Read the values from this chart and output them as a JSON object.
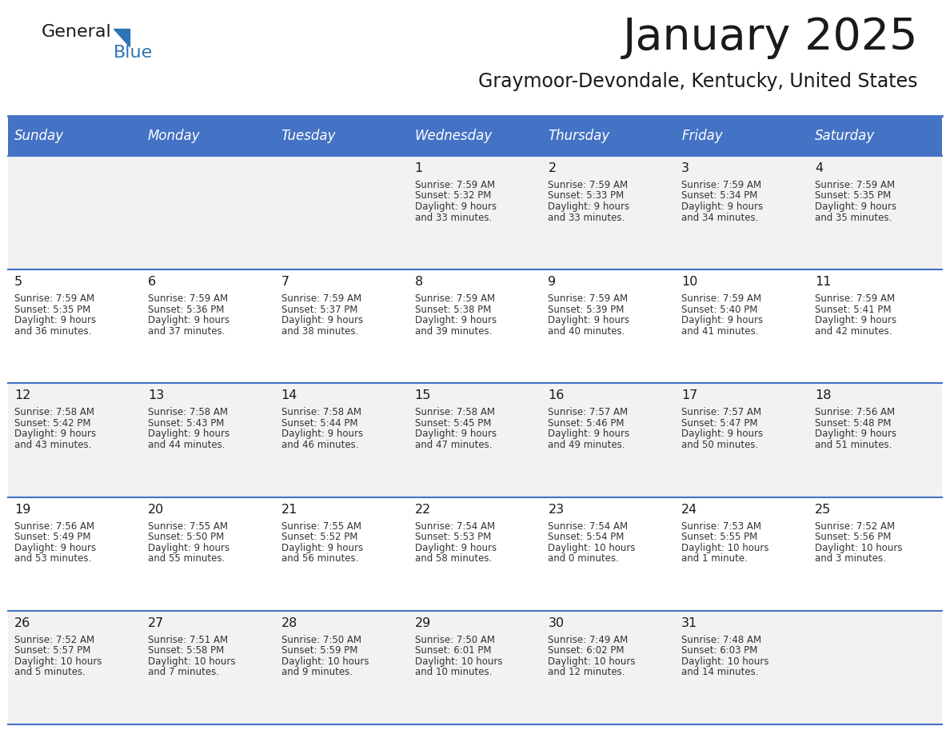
{
  "title": "January 2025",
  "subtitle": "Graymoor-Devondale, Kentucky, United States",
  "days_of_week": [
    "Sunday",
    "Monday",
    "Tuesday",
    "Wednesday",
    "Thursday",
    "Friday",
    "Saturday"
  ],
  "header_bg": "#4472C4",
  "header_text_color": "#FFFFFF",
  "cell_bg_even": "#F2F2F2",
  "cell_bg_odd": "#FFFFFF",
  "text_color": "#333333",
  "line_color": "#4472C4",
  "calendar_data": [
    [
      {
        "day": null,
        "sunrise": null,
        "sunset": null,
        "daylight": null
      },
      {
        "day": null,
        "sunrise": null,
        "sunset": null,
        "daylight": null
      },
      {
        "day": null,
        "sunrise": null,
        "sunset": null,
        "daylight": null
      },
      {
        "day": "1",
        "sunrise": "7:59 AM",
        "sunset": "5:32 PM",
        "daylight": "9 hours\nand 33 minutes."
      },
      {
        "day": "2",
        "sunrise": "7:59 AM",
        "sunset": "5:33 PM",
        "daylight": "9 hours\nand 33 minutes."
      },
      {
        "day": "3",
        "sunrise": "7:59 AM",
        "sunset": "5:34 PM",
        "daylight": "9 hours\nand 34 minutes."
      },
      {
        "day": "4",
        "sunrise": "7:59 AM",
        "sunset": "5:35 PM",
        "daylight": "9 hours\nand 35 minutes."
      }
    ],
    [
      {
        "day": "5",
        "sunrise": "7:59 AM",
        "sunset": "5:35 PM",
        "daylight": "9 hours\nand 36 minutes."
      },
      {
        "day": "6",
        "sunrise": "7:59 AM",
        "sunset": "5:36 PM",
        "daylight": "9 hours\nand 37 minutes."
      },
      {
        "day": "7",
        "sunrise": "7:59 AM",
        "sunset": "5:37 PM",
        "daylight": "9 hours\nand 38 minutes."
      },
      {
        "day": "8",
        "sunrise": "7:59 AM",
        "sunset": "5:38 PM",
        "daylight": "9 hours\nand 39 minutes."
      },
      {
        "day": "9",
        "sunrise": "7:59 AM",
        "sunset": "5:39 PM",
        "daylight": "9 hours\nand 40 minutes."
      },
      {
        "day": "10",
        "sunrise": "7:59 AM",
        "sunset": "5:40 PM",
        "daylight": "9 hours\nand 41 minutes."
      },
      {
        "day": "11",
        "sunrise": "7:59 AM",
        "sunset": "5:41 PM",
        "daylight": "9 hours\nand 42 minutes."
      }
    ],
    [
      {
        "day": "12",
        "sunrise": "7:58 AM",
        "sunset": "5:42 PM",
        "daylight": "9 hours\nand 43 minutes."
      },
      {
        "day": "13",
        "sunrise": "7:58 AM",
        "sunset": "5:43 PM",
        "daylight": "9 hours\nand 44 minutes."
      },
      {
        "day": "14",
        "sunrise": "7:58 AM",
        "sunset": "5:44 PM",
        "daylight": "9 hours\nand 46 minutes."
      },
      {
        "day": "15",
        "sunrise": "7:58 AM",
        "sunset": "5:45 PM",
        "daylight": "9 hours\nand 47 minutes."
      },
      {
        "day": "16",
        "sunrise": "7:57 AM",
        "sunset": "5:46 PM",
        "daylight": "9 hours\nand 49 minutes."
      },
      {
        "day": "17",
        "sunrise": "7:57 AM",
        "sunset": "5:47 PM",
        "daylight": "9 hours\nand 50 minutes."
      },
      {
        "day": "18",
        "sunrise": "7:56 AM",
        "sunset": "5:48 PM",
        "daylight": "9 hours\nand 51 minutes."
      }
    ],
    [
      {
        "day": "19",
        "sunrise": "7:56 AM",
        "sunset": "5:49 PM",
        "daylight": "9 hours\nand 53 minutes."
      },
      {
        "day": "20",
        "sunrise": "7:55 AM",
        "sunset": "5:50 PM",
        "daylight": "9 hours\nand 55 minutes."
      },
      {
        "day": "21",
        "sunrise": "7:55 AM",
        "sunset": "5:52 PM",
        "daylight": "9 hours\nand 56 minutes."
      },
      {
        "day": "22",
        "sunrise": "7:54 AM",
        "sunset": "5:53 PM",
        "daylight": "9 hours\nand 58 minutes."
      },
      {
        "day": "23",
        "sunrise": "7:54 AM",
        "sunset": "5:54 PM",
        "daylight": "10 hours\nand 0 minutes."
      },
      {
        "day": "24",
        "sunrise": "7:53 AM",
        "sunset": "5:55 PM",
        "daylight": "10 hours\nand 1 minute."
      },
      {
        "day": "25",
        "sunrise": "7:52 AM",
        "sunset": "5:56 PM",
        "daylight": "10 hours\nand 3 minutes."
      }
    ],
    [
      {
        "day": "26",
        "sunrise": "7:52 AM",
        "sunset": "5:57 PM",
        "daylight": "10 hours\nand 5 minutes."
      },
      {
        "day": "27",
        "sunrise": "7:51 AM",
        "sunset": "5:58 PM",
        "daylight": "10 hours\nand 7 minutes."
      },
      {
        "day": "28",
        "sunrise": "7:50 AM",
        "sunset": "5:59 PM",
        "daylight": "10 hours\nand 9 minutes."
      },
      {
        "day": "29",
        "sunrise": "7:50 AM",
        "sunset": "6:01 PM",
        "daylight": "10 hours\nand 10 minutes."
      },
      {
        "day": "30",
        "sunrise": "7:49 AM",
        "sunset": "6:02 PM",
        "daylight": "10 hours\nand 12 minutes."
      },
      {
        "day": "31",
        "sunrise": "7:48 AM",
        "sunset": "6:03 PM",
        "daylight": "10 hours\nand 14 minutes."
      },
      {
        "day": null,
        "sunrise": null,
        "sunset": null,
        "daylight": null
      }
    ]
  ]
}
